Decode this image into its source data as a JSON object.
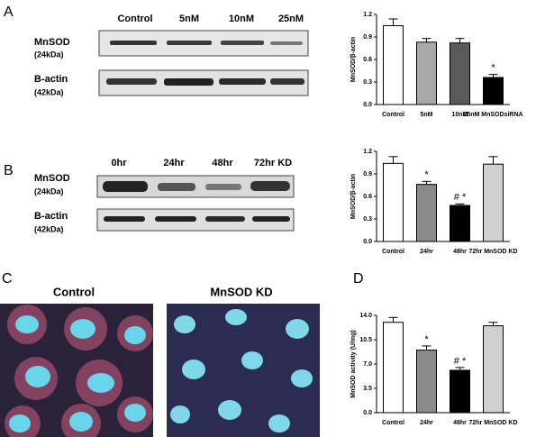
{
  "panels": {
    "a": "A",
    "b": "B",
    "c": "C",
    "d": "D"
  },
  "blot_a": {
    "lanes": [
      "Control",
      "5nM",
      "10nM",
      "25nM"
    ],
    "rows": [
      {
        "name": "MnSOD",
        "size": "(24kDa)"
      },
      {
        "name": "B-actin",
        "size": "(42kDa)"
      }
    ]
  },
  "blot_b": {
    "lanes": [
      "0hr",
      "24hr",
      "48hr",
      "72hr KD"
    ],
    "rows": [
      {
        "name": "MnSOD",
        "size": "(24kDa)"
      },
      {
        "name": "B-actin",
        "size": "(42kDa)"
      }
    ]
  },
  "images": {
    "left": "Control",
    "right": "MnSOD KD"
  },
  "chart_data": [
    {
      "type": "bar",
      "y_label": "MnSOD/β-actin",
      "categories": [
        "Control",
        "5nM",
        "10nM",
        "25nM MnSODsiRNA"
      ],
      "values": [
        1.05,
        0.83,
        0.82,
        0.36
      ],
      "errors": [
        0.09,
        0.05,
        0.06,
        0.04
      ],
      "colors": [
        "#ffffff",
        "#a8a8a8",
        "#5a5a5a",
        "#000000"
      ],
      "ylim": [
        0,
        1.2
      ],
      "yticks": [
        {
          "value": 0,
          "label": "0.0"
        },
        0.3,
        0.6,
        0.9,
        1.2
      ],
      "annotations": [
        {
          "text": "*",
          "x": "25nM MnSODsiRNA"
        }
      ]
    },
    {
      "type": "bar",
      "y_label": "MnSOD/β-actin",
      "categories": [
        "Control",
        "24hr",
        "48hr",
        "72hr MnSOD KD"
      ],
      "values": [
        1.04,
        0.76,
        0.48,
        1.03
      ],
      "errors": [
        0.09,
        0.04,
        0.02,
        0.1
      ],
      "colors": [
        "#ffffff",
        "#8a8a8a",
        "#000000",
        "#d0d0d0"
      ],
      "ylim": [
        0,
        1.2
      ],
      "yticks": [
        {
          "value": 0,
          "label": "0.0"
        },
        0.3,
        0.6,
        0.9,
        1.2
      ],
      "annotations": [
        {
          "text": "*",
          "x": "24hr"
        },
        {
          "text": "# *",
          "x": "48hr"
        }
      ]
    },
    {
      "type": "bar",
      "y_label": "MnSOD activity (U/mg)",
      "categories": [
        "Control",
        "24hr",
        "48hr",
        "72hr MnSOD KD"
      ],
      "values": [
        13.0,
        9.0,
        6.1,
        12.5
      ],
      "errors": [
        0.7,
        0.6,
        0.4,
        0.5
      ],
      "colors": [
        "#ffffff",
        "#8a8a8a",
        "#000000",
        "#d0d0d0"
      ],
      "ylim": [
        0,
        14
      ],
      "yticks": [
        {
          "value": 0,
          "label": "0.0"
        },
        3.5,
        {
          "value": 7,
          "label": "7.0"
        },
        10.5,
        {
          "value": 14,
          "label": "14.0"
        }
      ],
      "annotations": [
        {
          "text": "*",
          "x": "24hr"
        },
        {
          "text": "# *",
          "x": "48hr"
        }
      ]
    }
  ]
}
